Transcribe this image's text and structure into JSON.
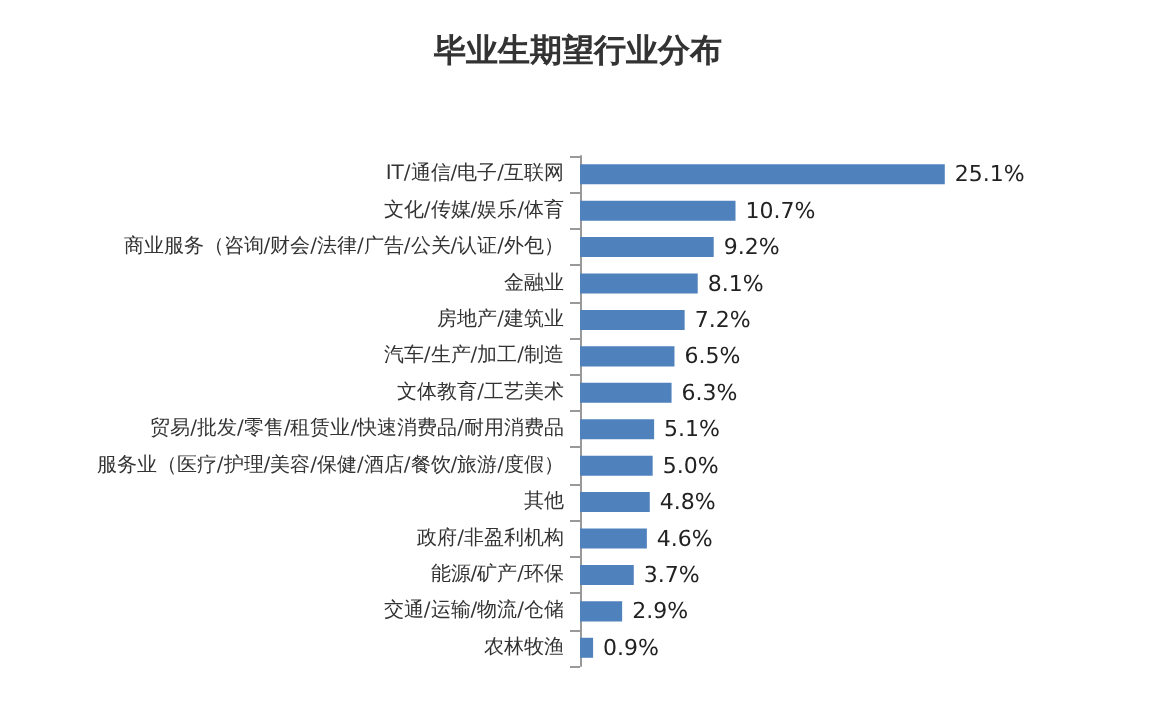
{
  "chart_data": {
    "type": "bar",
    "orientation": "horizontal",
    "title": "毕业生期望行业分布",
    "categories": [
      "IT/通信/电子/互联网",
      "文化/传媒/娱乐/体育",
      "商业服务（咨询/财会/法律/广告/公关/认证/外包）",
      "金融业",
      "房地产/建筑业",
      "汽车/生产/加工/制造",
      "文体教育/工艺美术",
      "贸易/批发/零售/租赁业/快速消费品/耐用消费品",
      "服务业（医疗/护理/美容/保健/酒店/餐饮/旅游/度假）",
      "其他",
      "政府/非盈利机构",
      "能源/矿产/环保",
      "交通/运输/物流/仓储",
      "农林牧渔"
    ],
    "values": [
      25.1,
      10.7,
      9.2,
      8.1,
      7.2,
      6.5,
      6.3,
      5.1,
      5.0,
      4.8,
      4.6,
      3.7,
      2.9,
      0.9
    ],
    "value_labels": [
      "25.1%",
      "10.7%",
      "9.2%",
      "8.1%",
      "7.2%",
      "6.5%",
      "6.3%",
      "5.1%",
      "5.0%",
      "4.8%",
      "4.6%",
      "3.7%",
      "2.9%",
      "0.9%"
    ],
    "color": "#4f81bd"
  }
}
